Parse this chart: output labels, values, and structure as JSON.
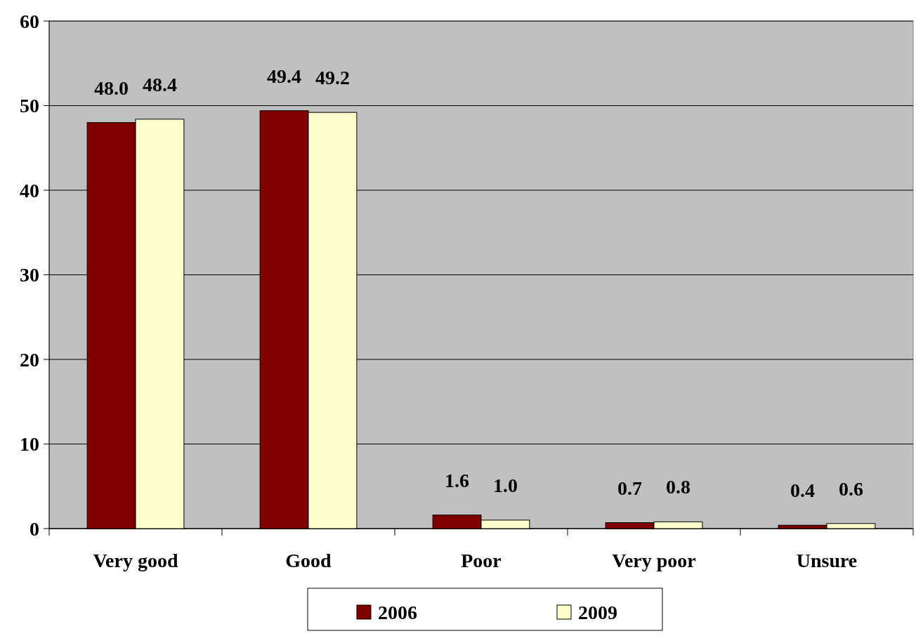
{
  "chart_data": {
    "type": "bar",
    "categories": [
      "Very good",
      "Good",
      "Poor",
      "Very poor",
      "Unsure"
    ],
    "series": [
      {
        "name": "2006",
        "color": "#800000",
        "values": [
          48.0,
          49.4,
          1.6,
          0.7,
          0.4
        ],
        "value_labels": [
          "48.0",
          "49.4",
          "1.6",
          "0.7",
          "0.4"
        ]
      },
      {
        "name": "2009",
        "color": "#ffffcc",
        "values": [
          48.4,
          49.2,
          1.0,
          0.8,
          0.6
        ],
        "value_labels": [
          "48.4",
          "49.2",
          "1.0",
          "0.8",
          "0.6"
        ]
      }
    ],
    "ylim": [
      0,
      60
    ],
    "yticks": [
      0,
      10,
      20,
      30,
      40,
      50,
      60
    ],
    "grid": "y",
    "legend": "bottom"
  }
}
